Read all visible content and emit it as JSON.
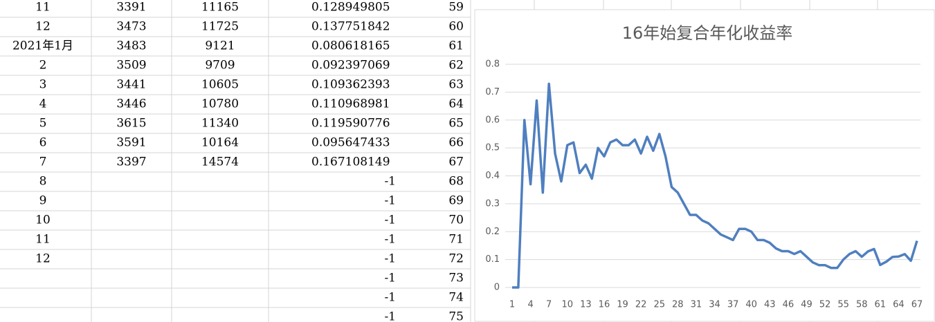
{
  "table": {
    "rows": [
      [
        "11",
        "3391",
        "11165",
        "0.128949805",
        "59"
      ],
      [
        "12",
        "3473",
        "11725",
        "0.137751842",
        "60"
      ],
      [
        "2021年1月",
        "3483",
        "9121",
        "0.080618165",
        "61"
      ],
      [
        "2",
        "3509",
        "9709",
        "0.092397069",
        "62"
      ],
      [
        "3",
        "3441",
        "10605",
        "0.109362393",
        "63"
      ],
      [
        "4",
        "3446",
        "10780",
        "0.110968981",
        "64"
      ],
      [
        "5",
        "3615",
        "11340",
        "0.119590776",
        "65"
      ],
      [
        "6",
        "3591",
        "10164",
        "0.095647433",
        "66"
      ],
      [
        "7",
        "3397",
        "14574",
        "0.167108149",
        "67"
      ],
      [
        "8",
        null,
        null,
        "-1",
        "68"
      ],
      [
        "9",
        null,
        null,
        "-1",
        "69"
      ],
      [
        "10",
        null,
        null,
        "-1",
        "70"
      ],
      [
        "11",
        null,
        null,
        "-1",
        "71"
      ],
      [
        "12",
        null,
        null,
        "-1",
        "72"
      ],
      [
        null,
        null,
        null,
        "-1",
        "73"
      ],
      [
        null,
        null,
        null,
        "-1",
        "74"
      ],
      [
        null,
        null,
        null,
        "-1",
        "75"
      ]
    ]
  },
  "chart_data": {
    "type": "line",
    "title": "16年始复合年化收益率",
    "x": [
      1,
      2,
      3,
      4,
      5,
      6,
      7,
      8,
      9,
      10,
      11,
      12,
      13,
      14,
      15,
      16,
      17,
      18,
      19,
      20,
      21,
      22,
      23,
      24,
      25,
      26,
      27,
      28,
      29,
      30,
      31,
      32,
      33,
      34,
      35,
      36,
      37,
      38,
      39,
      40,
      41,
      42,
      43,
      44,
      45,
      46,
      47,
      48,
      49,
      50,
      51,
      52,
      53,
      54,
      55,
      56,
      57,
      58,
      59,
      60,
      61,
      62,
      63,
      64,
      65,
      66,
      67
    ],
    "series": [
      {
        "color": "#4f7fbf",
        "values": [
          0,
          0,
          0.6,
          0.37,
          0.67,
          0.34,
          0.73,
          0.48,
          0.38,
          0.51,
          0.52,
          0.41,
          0.44,
          0.39,
          0.5,
          0.47,
          0.52,
          0.53,
          0.51,
          0.51,
          0.53,
          0.48,
          0.54,
          0.49,
          0.55,
          0.47,
          0.36,
          0.34,
          0.3,
          0.26,
          0.26,
          0.24,
          0.23,
          0.21,
          0.19,
          0.18,
          0.17,
          0.21,
          0.21,
          0.2,
          0.17,
          0.17,
          0.16,
          0.14,
          0.13,
          0.13,
          0.12,
          0.13,
          0.11,
          0.09,
          0.08,
          0.08,
          0.07,
          0.07,
          0.1,
          0.12,
          0.13,
          0.11,
          0.128949805,
          0.137751842,
          0.080618165,
          0.092397069,
          0.109362393,
          0.110968981,
          0.119590776,
          0.095647433,
          0.167108149
        ]
      }
    ],
    "xlim": [
      1,
      67
    ],
    "xticks": [
      1,
      4,
      7,
      10,
      13,
      16,
      19,
      22,
      25,
      28,
      31,
      34,
      37,
      40,
      43,
      46,
      49,
      52,
      55,
      58,
      61,
      64,
      67
    ],
    "ylim": [
      0,
      0.8
    ],
    "yticks": [
      0,
      0.1,
      0.2,
      0.3,
      0.4,
      0.5,
      0.6,
      0.7,
      0.8
    ],
    "grid": true
  }
}
